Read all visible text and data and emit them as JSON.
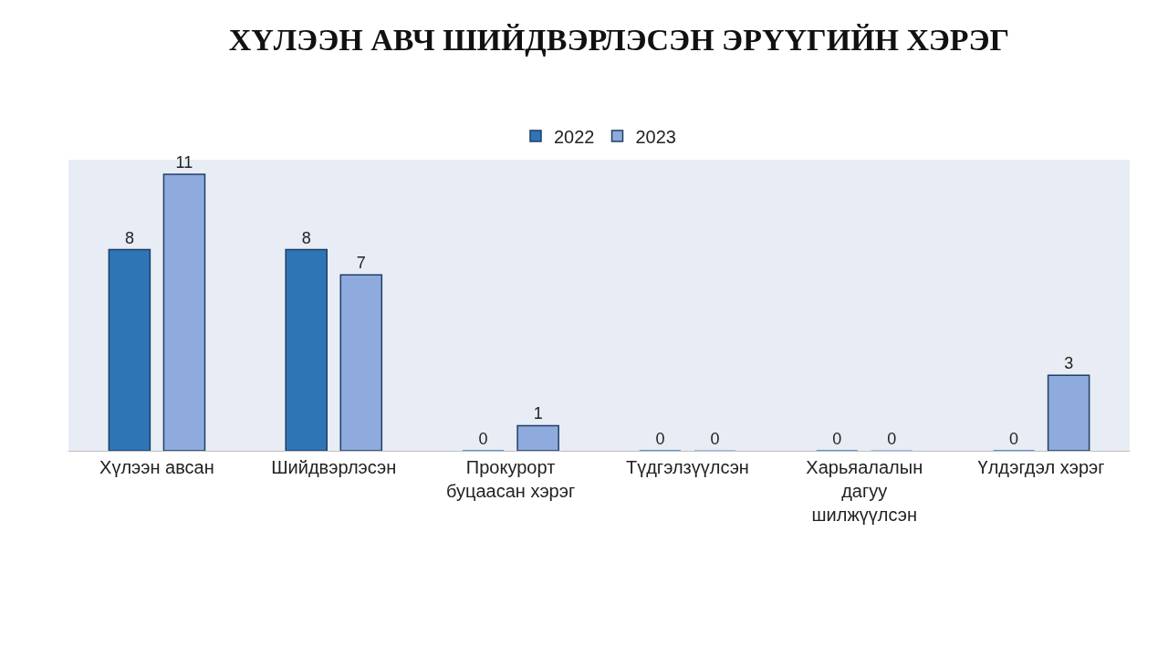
{
  "chart_data": {
    "type": "bar",
    "title": "ХҮЛЭЭН АВЧ ШИЙДВЭРЛЭСЭН ЭРҮҮГИЙН ХЭРЭГ",
    "categories": [
      "Хүлээн авсан",
      "Шийдвэрлэсэн",
      "Прокурорт буцаасан хэрэг",
      "Түдгэлзүүлсэн",
      "Харьяалалын дагуу шилжүүлсэн",
      "Үлдэгдэл хэрэг"
    ],
    "series": [
      {
        "name": "2022",
        "color": "#2e75b6",
        "values": [
          8,
          8,
          0,
          0,
          0,
          0
        ]
      },
      {
        "name": "2023",
        "color": "#8faadc",
        "values": [
          11,
          7,
          1,
          0,
          0,
          3
        ]
      }
    ],
    "data_labels": true,
    "legend": "top"
  }
}
